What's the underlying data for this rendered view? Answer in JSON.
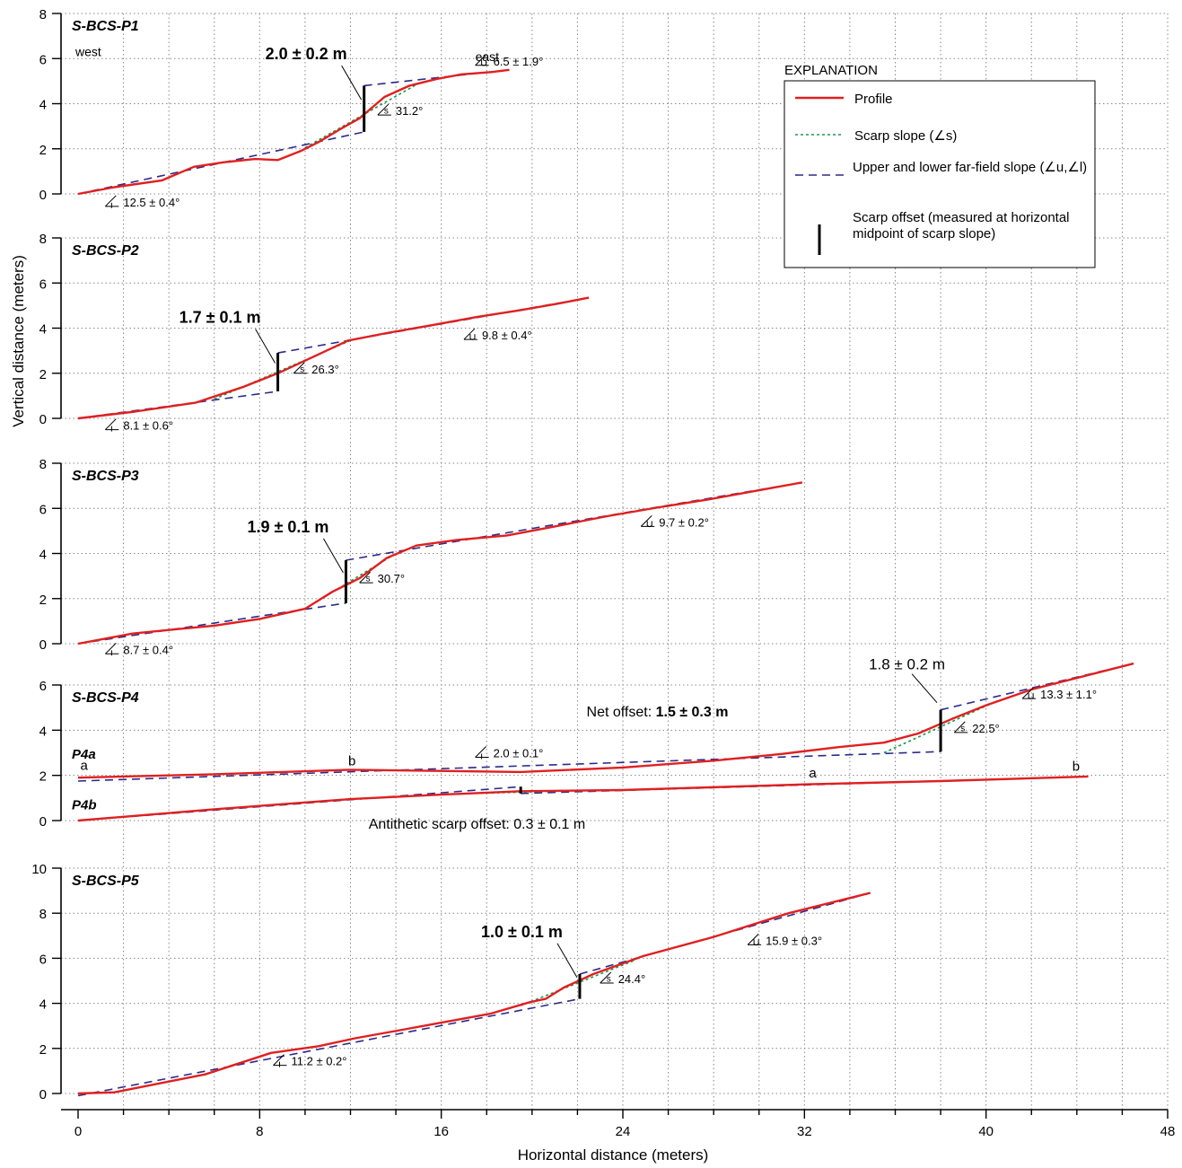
{
  "chart_data": {
    "type": "line",
    "xlabel": "Horizontal distance (meters)",
    "ylabel": "Vertical distance (meters)",
    "xlim": [
      -0.5,
      48
    ],
    "x_ticks": [
      0,
      8,
      16,
      24,
      32,
      40,
      48
    ],
    "x_tick_labels": [
      "0",
      "8",
      "16",
      "24",
      "32",
      "40",
      "48"
    ],
    "grid": true,
    "legend": {
      "title": "EXPLANATION",
      "placement": "top-right",
      "entries": [
        {
          "key": "profile",
          "label": "Profile",
          "color": "#e02020"
        },
        {
          "key": "scarp",
          "label": "Scarp slope (∠s)",
          "color": "#1a9a50"
        },
        {
          "key": "far",
          "label": "Upper and lower far-field slope (∠u,∠l)",
          "color": "#2b2b8c"
        },
        {
          "key": "offset",
          "label": "Scarp offset (measured at horizontal midpoint of scarp slope)",
          "color": "#000000"
        }
      ]
    },
    "panels": [
      {
        "name": "S-BCS-P1",
        "ylim": [
          0,
          8
        ],
        "y_ticks": [
          0,
          2,
          4,
          6,
          8
        ],
        "labels": {
          "west": "west",
          "east": "east"
        },
        "profile": [
          [
            0,
            0
          ],
          [
            1.6,
            0.3
          ],
          [
            3.7,
            0.6
          ],
          [
            5.1,
            1.2
          ],
          [
            6.4,
            1.4
          ],
          [
            7.8,
            1.55
          ],
          [
            8.8,
            1.5
          ],
          [
            9.8,
            1.9
          ],
          [
            10.6,
            2.3
          ],
          [
            11.6,
            2.9
          ],
          [
            12.4,
            3.35
          ],
          [
            13.5,
            4.3
          ],
          [
            14.6,
            4.8
          ],
          [
            15.8,
            5.1
          ],
          [
            16.9,
            5.3
          ],
          [
            18.2,
            5.4
          ],
          [
            19.0,
            5.5
          ]
        ],
        "scarp_line": [
          [
            10.0,
            2.05
          ],
          [
            15.0,
            4.9
          ]
        ],
        "lower_far": [
          [
            0,
            0
          ],
          [
            12.6,
            2.75
          ]
        ],
        "upper_far": [
          [
            12.6,
            4.8
          ],
          [
            19.0,
            5.5
          ]
        ],
        "offset": {
          "x": 12.6,
          "y0": 2.75,
          "y1": 4.8,
          "label": "2.0 ± 0.2 m"
        },
        "slope_labels": [
          {
            "kind": "l",
            "text": "12.5 ± 0.4°",
            "x": 1.2,
            "y": -0.55
          },
          {
            "kind": "s",
            "text": "31.2°",
            "x": 13.2,
            "y": 3.5
          },
          {
            "kind": "u",
            "text": "6.5 ± 1.9°",
            "x": 17.5,
            "y": 5.7
          }
        ]
      },
      {
        "name": "S-BCS-P2",
        "ylim": [
          0,
          8
        ],
        "y_ticks": [
          0,
          2,
          4,
          6,
          8
        ],
        "profile": [
          [
            0,
            0
          ],
          [
            2.5,
            0.3
          ],
          [
            5.2,
            0.7
          ],
          [
            7.3,
            1.4
          ],
          [
            8.8,
            2.0
          ],
          [
            10.3,
            2.7
          ],
          [
            11.9,
            3.45
          ],
          [
            13.7,
            3.8
          ],
          [
            15.7,
            4.15
          ],
          [
            17.6,
            4.5
          ],
          [
            19.5,
            4.8
          ],
          [
            21.2,
            5.1
          ],
          [
            22.5,
            5.35
          ]
        ],
        "scarp_line": [
          [
            6.0,
            0.85
          ],
          [
            12.0,
            3.45
          ]
        ],
        "lower_far": [
          [
            0,
            0
          ],
          [
            8.8,
            1.2
          ]
        ],
        "upper_far": [
          [
            8.8,
            2.9
          ],
          [
            22.5,
            5.35
          ]
        ],
        "offset": {
          "x": 8.8,
          "y0": 1.2,
          "y1": 2.9,
          "label": "1.7 ± 0.1 m"
        },
        "slope_labels": [
          {
            "kind": "l",
            "text": "8.1 ± 0.6°",
            "x": 1.2,
            "y": -0.5
          },
          {
            "kind": "s",
            "text": "26.3°",
            "x": 9.5,
            "y": 2.0
          },
          {
            "kind": "u",
            "text": "9.8 ± 0.4°",
            "x": 17.0,
            "y": 3.5
          }
        ]
      },
      {
        "name": "S-BCS-P3",
        "ylim": [
          0,
          8
        ],
        "y_ticks": [
          0,
          2,
          4,
          6,
          8
        ],
        "profile": [
          [
            0,
            0
          ],
          [
            2.4,
            0.45
          ],
          [
            4.4,
            0.65
          ],
          [
            6.0,
            0.8
          ],
          [
            8.0,
            1.1
          ],
          [
            10.0,
            1.55
          ],
          [
            11.2,
            2.3
          ],
          [
            12.4,
            2.9
          ],
          [
            13.6,
            3.8
          ],
          [
            14.9,
            4.35
          ],
          [
            16.7,
            4.6
          ],
          [
            18.9,
            4.8
          ],
          [
            21.0,
            5.2
          ],
          [
            23.3,
            5.65
          ],
          [
            25.6,
            6.05
          ],
          [
            27.8,
            6.4
          ],
          [
            30.0,
            6.8
          ],
          [
            31.9,
            7.15
          ]
        ],
        "scarp_line": [
          [
            10.0,
            1.55
          ],
          [
            14.0,
            4.0
          ]
        ],
        "lower_far": [
          [
            0,
            0
          ],
          [
            11.8,
            1.8
          ]
        ],
        "upper_far": [
          [
            11.8,
            3.7
          ],
          [
            31.9,
            7.15
          ]
        ],
        "offset": {
          "x": 11.8,
          "y0": 1.8,
          "y1": 3.7,
          "label": "1.9 ± 0.1 m"
        },
        "slope_labels": [
          {
            "kind": "l",
            "text": "8.7 ± 0.4°",
            "x": 1.2,
            "y": -0.45
          },
          {
            "kind": "s",
            "text": "30.7°",
            "x": 12.4,
            "y": 2.7
          },
          {
            "kind": "u",
            "text": "9.7 ± 0.2°",
            "x": 24.8,
            "y": 5.2
          }
        ]
      },
      {
        "name": "S-BCS-P4",
        "ylim": [
          0,
          6
        ],
        "y_ticks": [
          0,
          2,
          4,
          6
        ],
        "sub_labels": {
          "a": "P4a",
          "b": "P4b"
        },
        "profile": [
          [
            0,
            1.9
          ],
          [
            6,
            2.05
          ],
          [
            12,
            2.25
          ],
          [
            15.5,
            2.2
          ],
          [
            19.5,
            2.15
          ],
          [
            24,
            2.35
          ],
          [
            28,
            2.65
          ],
          [
            31,
            2.95
          ],
          [
            33.5,
            3.25
          ],
          [
            35.5,
            3.45
          ],
          [
            37,
            3.85
          ],
          [
            38.5,
            4.5
          ],
          [
            40,
            5.1
          ],
          [
            42,
            5.8
          ],
          [
            46.5,
            6.95
          ]
        ],
        "profile_b": [
          [
            0,
            0
          ],
          [
            6,
            0.5
          ],
          [
            12,
            0.95
          ],
          [
            16,
            1.15
          ],
          [
            19.5,
            1.3
          ],
          [
            24,
            1.35
          ],
          [
            32,
            1.6
          ],
          [
            38,
            1.75
          ],
          [
            44.5,
            1.95
          ]
        ],
        "scarp_line": [
          [
            35.5,
            3.0
          ],
          [
            40.5,
            5.3
          ]
        ],
        "lower_far": [
          [
            0,
            1.75
          ],
          [
            38,
            3.05
          ]
        ],
        "upper_far": [
          [
            38,
            4.9
          ],
          [
            46.5,
            6.95
          ]
        ],
        "scarp_line_b": [
          [
            17.5,
            1.2
          ],
          [
            21,
            1.3
          ]
        ],
        "far_b1": [
          [
            0,
            0
          ],
          [
            19.5,
            1.5
          ]
        ],
        "far_b2": [
          [
            19.5,
            1.2
          ],
          [
            44.5,
            1.95
          ]
        ],
        "offset": {
          "x": 38,
          "y0": 3.05,
          "y1": 4.9,
          "label": "1.8 ± 0.2 m"
        },
        "offset_b": {
          "x": 19.5,
          "y0": 1.2,
          "y1": 1.5
        },
        "net_offset": {
          "prefix": "Net offset: ",
          "value": "1.5 ± 0.3 m"
        },
        "antithetic_label": "Antithetic scarp offset: 0.3 ± 0.1 m",
        "point_labels": [
          {
            "text": "a",
            "x": 0.1,
            "y": 2.25
          },
          {
            "text": "b",
            "x": 11.9,
            "y": 2.45
          },
          {
            "text": "a",
            "x": 32.2,
            "y": 1.9
          },
          {
            "text": "b",
            "x": 43.8,
            "y": 2.2
          }
        ],
        "slope_labels": [
          {
            "kind": "l",
            "text": "2.0 ± 0.1°",
            "x": 17.5,
            "y": 2.8
          },
          {
            "kind": "s",
            "text": "22.5°",
            "x": 38.6,
            "y": 3.9
          },
          {
            "kind": "u",
            "text": "13.3 ± 1.1°",
            "x": 41.6,
            "y": 5.4
          }
        ]
      },
      {
        "name": "S-BCS-P5",
        "ylim": [
          0,
          10
        ],
        "y_ticks": [
          0,
          2,
          4,
          6,
          8,
          10
        ],
        "profile": [
          [
            0,
            0
          ],
          [
            1.6,
            0.05
          ],
          [
            5.6,
            0.85
          ],
          [
            8.5,
            1.8
          ],
          [
            10.6,
            2.1
          ],
          [
            12.2,
            2.45
          ],
          [
            14.4,
            2.85
          ],
          [
            16.3,
            3.2
          ],
          [
            18.2,
            3.55
          ],
          [
            19.9,
            4.05
          ],
          [
            20.6,
            4.2
          ],
          [
            21.4,
            4.7
          ],
          [
            22.7,
            5.3
          ],
          [
            24.9,
            6.1
          ],
          [
            28.0,
            6.95
          ],
          [
            31.3,
            8.0
          ],
          [
            34.9,
            8.9
          ]
        ],
        "scarp_line": [
          [
            19.5,
            3.9
          ],
          [
            24.5,
            5.9
          ]
        ],
        "lower_far": [
          [
            0,
            -0.1
          ],
          [
            22.1,
            4.2
          ]
        ],
        "upper_far": [
          [
            22.1,
            5.3
          ],
          [
            34.9,
            8.9
          ]
        ],
        "offset": {
          "x": 22.1,
          "y0": 4.2,
          "y1": 5.3,
          "label": "1.0 ± 0.1 m"
        },
        "slope_labels": [
          {
            "kind": "l",
            "text": "11.2 ± 0.2°",
            "x": 8.6,
            "y": 1.25
          },
          {
            "kind": "s",
            "text": "24.4°",
            "x": 23.0,
            "y": 4.9
          },
          {
            "kind": "u",
            "text": "15.9 ± 0.3°",
            "x": 29.5,
            "y": 6.6
          }
        ]
      }
    ]
  }
}
